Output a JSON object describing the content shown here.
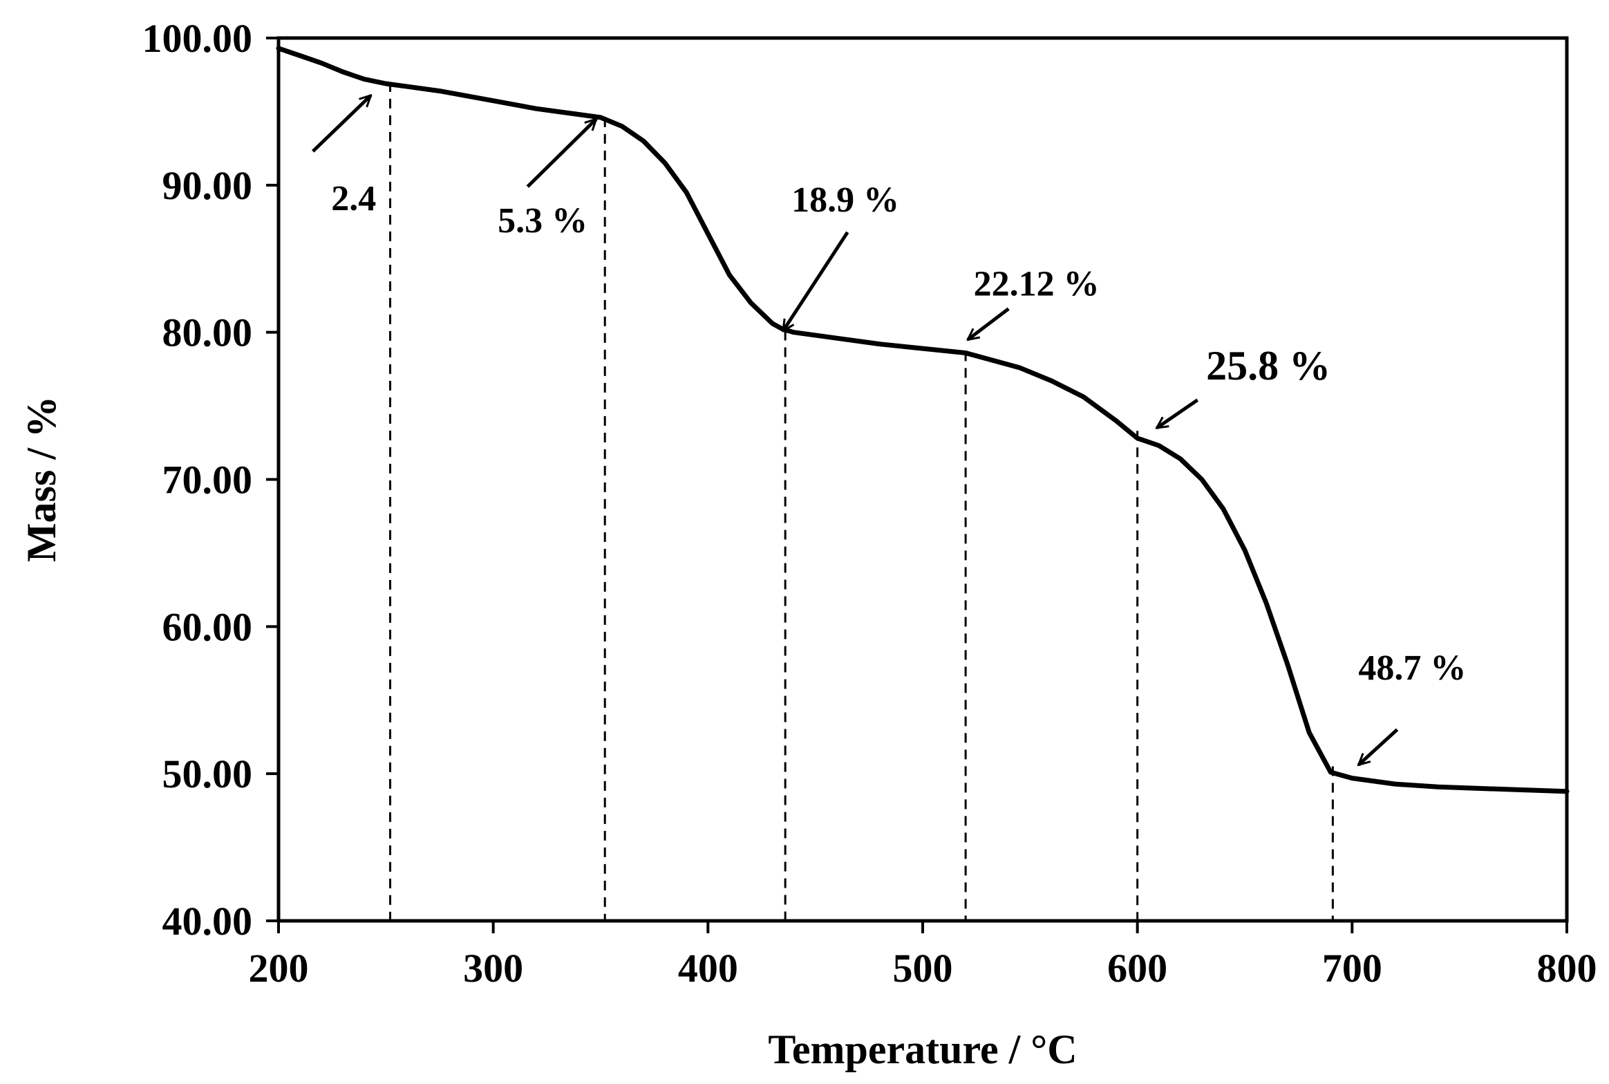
{
  "chart_data": {
    "type": "line",
    "title": "",
    "xlabel": "Temperature  / °C",
    "ylabel": "Mass / %",
    "xlim": [
      200,
      800
    ],
    "ylim": [
      40,
      100
    ],
    "x_ticks": [
      200,
      300,
      400,
      500,
      600,
      700,
      800
    ],
    "x_tick_labels": [
      "200",
      "300",
      "400",
      "500",
      "600",
      "700",
      "800"
    ],
    "y_ticks": [
      40,
      50,
      60,
      70,
      80,
      90,
      100
    ],
    "y_tick_labels": [
      "40.00",
      "50.00",
      "60.00",
      "70.00",
      "80.00",
      "90.00",
      "100.00"
    ],
    "grid": false,
    "series": [
      {
        "name": "Mass",
        "color": "#000000",
        "x": [
          200,
          210,
          220,
          230,
          240,
          250,
          260,
          275,
          290,
          305,
          320,
          335,
          350,
          360,
          370,
          380,
          390,
          400,
          410,
          420,
          430,
          435,
          440,
          460,
          480,
          500,
          520,
          530,
          545,
          560,
          575,
          590,
          600,
          610,
          620,
          630,
          640,
          650,
          660,
          670,
          680,
          690,
          700,
          720,
          740,
          760,
          780,
          800
        ],
        "y": [
          99.3,
          98.8,
          98.3,
          97.7,
          97.2,
          96.9,
          96.7,
          96.4,
          96.0,
          95.6,
          95.2,
          94.9,
          94.6,
          94.0,
          93.0,
          91.5,
          89.5,
          86.7,
          83.9,
          82.0,
          80.6,
          80.2,
          80.0,
          79.6,
          79.2,
          78.9,
          78.6,
          78.2,
          77.6,
          76.7,
          75.6,
          74.0,
          72.8,
          72.3,
          71.4,
          70.0,
          68.0,
          65.2,
          61.6,
          57.4,
          52.8,
          50.1,
          49.7,
          49.3,
          49.1,
          49.0,
          48.9,
          48.8
        ]
      }
    ],
    "markers": [
      {
        "x": 252,
        "y_top": 97.0
      },
      {
        "x": 352,
        "y_top": 94.6
      },
      {
        "x": 436,
        "y_top": 80.1
      },
      {
        "x": 520,
        "y_top": 78.7
      },
      {
        "x": 600,
        "y_top": 73.3
      },
      {
        "x": 691,
        "y_top": 50.5
      }
    ],
    "annotations": [
      {
        "text": "2.4",
        "label_x": 235,
        "label_y": 88.3,
        "arrow_from": [
          216,
          92.3
        ],
        "arrow_to": [
          243,
          96.1
        ]
      },
      {
        "text": "5.3 %",
        "label_x": 323,
        "label_y": 86.8,
        "arrow_from": [
          316,
          89.9
        ],
        "arrow_to": [
          348,
          94.5
        ]
      },
      {
        "text": "18.9 %",
        "label_x": 464,
        "label_y": 88.2,
        "arrow_from": [
          465,
          86.8
        ],
        "arrow_to": [
          435,
          80.1
        ]
      },
      {
        "text": "22.12 %",
        "label_x": 553,
        "label_y": 82.5,
        "arrow_from": [
          540,
          81.6
        ],
        "arrow_to": [
          521,
          79.5
        ]
      },
      {
        "text": "25.8 %",
        "label_x": 661,
        "label_y": 76.8,
        "arrow_from": [
          628,
          75.4
        ],
        "arrow_to": [
          609,
          73.5
        ]
      },
      {
        "text": "48.7 %",
        "label_x": 728,
        "label_y": 56.4,
        "arrow_from": [
          721,
          53.0
        ],
        "arrow_to": [
          703,
          50.6
        ]
      }
    ]
  }
}
